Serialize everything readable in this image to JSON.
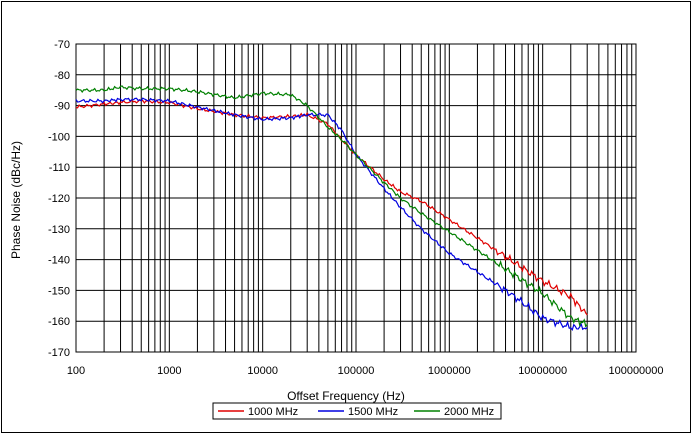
{
  "chart_data": {
    "type": "line",
    "title": "",
    "xlabel": "Offset Frequency (Hz)",
    "ylabel": "Phase Noise (dBc/Hz)",
    "xscale": "log",
    "xlim": [
      100,
      100000000
    ],
    "ylim": [
      -170,
      -70
    ],
    "x_ticks": [
      100,
      1000,
      10000,
      100000,
      1000000,
      10000000,
      100000000
    ],
    "x_tick_labels": [
      "100",
      "1000",
      "10000",
      "100000",
      "1000000",
      "10000000",
      "100000000"
    ],
    "y_ticks": [
      -70,
      -80,
      -90,
      -100,
      -110,
      -120,
      -130,
      -140,
      -150,
      -160,
      -170
    ],
    "y_tick_labels": [
      "-70",
      "-80",
      "-90",
      "-100",
      "-110",
      "-120",
      "-130",
      "-140",
      "-150",
      "-160",
      "-170"
    ],
    "grid": true,
    "legend_position": "bottom-center",
    "series": [
      {
        "name": "1000 MHz",
        "color": "#e00000",
        "points": [
          [
            100,
            -90.5
          ],
          [
            200,
            -89.5
          ],
          [
            300,
            -89
          ],
          [
            500,
            -88.5
          ],
          [
            1000,
            -89
          ],
          [
            2000,
            -91
          ],
          [
            5000,
            -93
          ],
          [
            10000,
            -94
          ],
          [
            20000,
            -93.5
          ],
          [
            30000,
            -93
          ],
          [
            50000,
            -96
          ],
          [
            70000,
            -101
          ],
          [
            100000,
            -106
          ],
          [
            200000,
            -114
          ],
          [
            300000,
            -118
          ],
          [
            500000,
            -121
          ],
          [
            1000000,
            -127
          ],
          [
            2000000,
            -133
          ],
          [
            5000000,
            -141
          ],
          [
            10000000,
            -147
          ],
          [
            20000000,
            -152
          ],
          [
            30000000,
            -158
          ]
        ]
      },
      {
        "name": "1500 MHz",
        "color": "#0000e0",
        "points": [
          [
            100,
            -88.5
          ],
          [
            200,
            -88.5
          ],
          [
            300,
            -88
          ],
          [
            500,
            -88
          ],
          [
            1000,
            -88.5
          ],
          [
            2000,
            -90.5
          ],
          [
            5000,
            -93
          ],
          [
            10000,
            -94.5
          ],
          [
            20000,
            -94
          ],
          [
            30000,
            -93
          ],
          [
            50000,
            -93
          ],
          [
            70000,
            -98
          ],
          [
            100000,
            -106
          ],
          [
            200000,
            -117
          ],
          [
            300000,
            -123
          ],
          [
            500000,
            -130
          ],
          [
            1000000,
            -138
          ],
          [
            2000000,
            -144
          ],
          [
            5000000,
            -152
          ],
          [
            10000000,
            -159
          ],
          [
            20000000,
            -162
          ],
          [
            30000000,
            -162
          ]
        ]
      },
      {
        "name": "2000 MHz",
        "color": "#008000",
        "points": [
          [
            100,
            -85
          ],
          [
            200,
            -85
          ],
          [
            300,
            -84
          ],
          [
            500,
            -84.5
          ],
          [
            1000,
            -84.5
          ],
          [
            2000,
            -85.5
          ],
          [
            5000,
            -87.5
          ],
          [
            10000,
            -86
          ],
          [
            20000,
            -86.5
          ],
          [
            30000,
            -90
          ],
          [
            50000,
            -97
          ],
          [
            70000,
            -101
          ],
          [
            100000,
            -106
          ],
          [
            200000,
            -115
          ],
          [
            300000,
            -120
          ],
          [
            500000,
            -125
          ],
          [
            1000000,
            -131
          ],
          [
            2000000,
            -137
          ],
          [
            5000000,
            -145
          ],
          [
            10000000,
            -151
          ],
          [
            20000000,
            -159
          ],
          [
            30000000,
            -161
          ]
        ]
      }
    ]
  }
}
